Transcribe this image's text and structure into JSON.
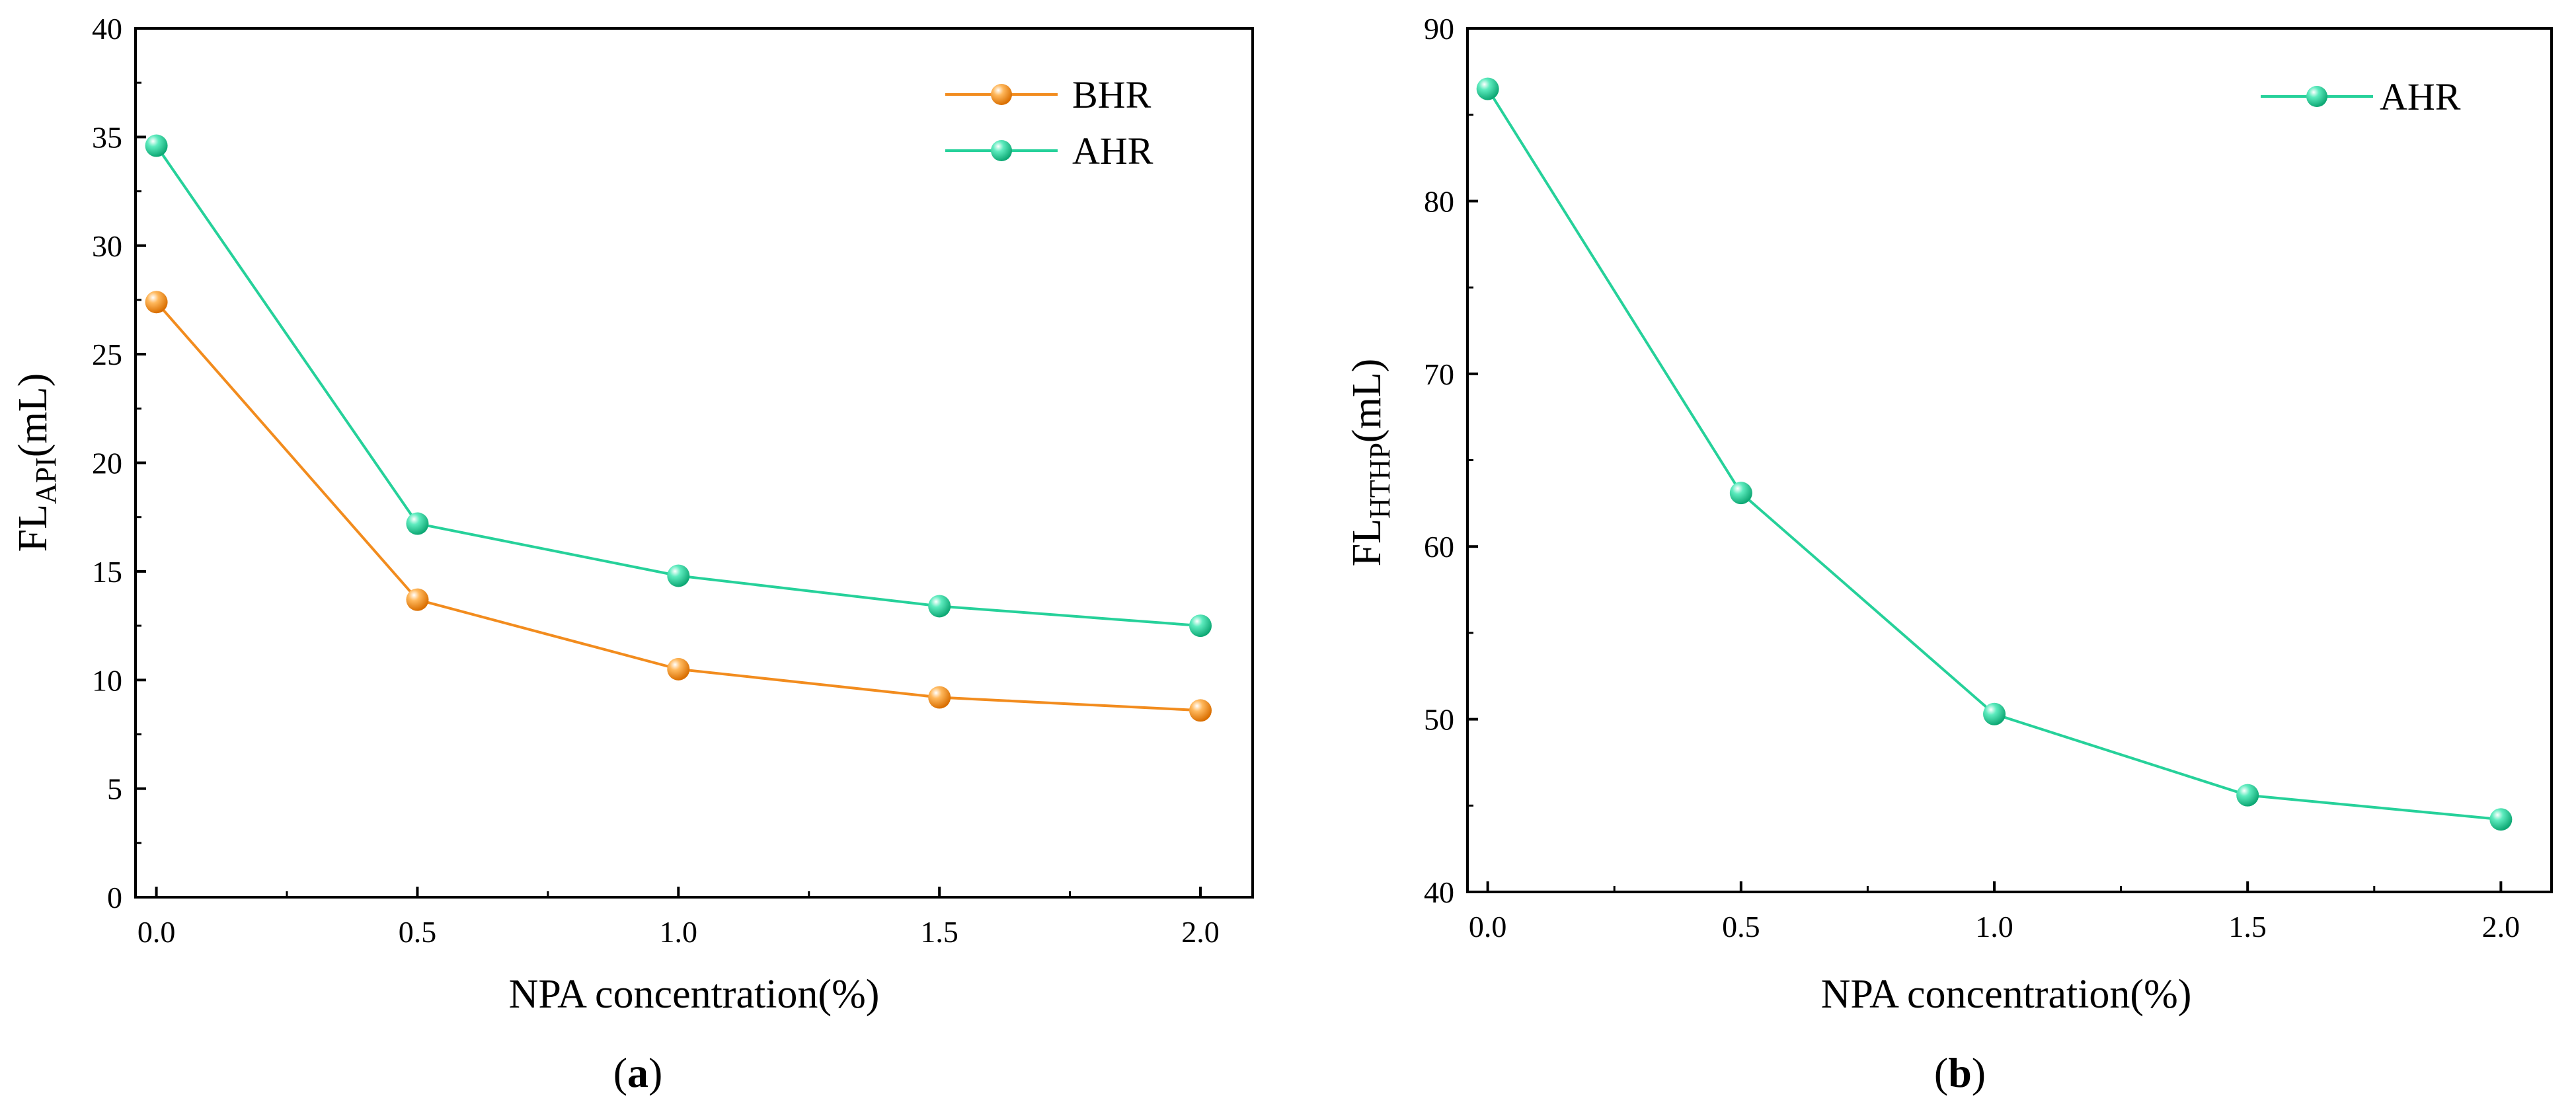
{
  "chart_data": [
    {
      "id": "a",
      "type": "line",
      "panel_label": "a",
      "xlabel": "NPA concentration(%)",
      "ylabel": {
        "base": "FL",
        "subscript": "API",
        "suffix": "(mL)"
      },
      "x": [
        0.0,
        0.5,
        1.0,
        1.5,
        2.0
      ],
      "x_tick_labels": [
        "0.0",
        "0.5",
        "1.0",
        "1.5",
        "2.0"
      ],
      "xlim": [
        -0.04,
        2.1
      ],
      "ylim": [
        0,
        40
      ],
      "y_ticks": [
        0,
        5,
        10,
        15,
        20,
        25,
        30,
        35,
        40
      ],
      "y_tick_labels": [
        "0",
        "5",
        "10",
        "15",
        "20",
        "25",
        "30",
        "35",
        "40"
      ],
      "legend_position": "top-right",
      "series": [
        {
          "name": "BHR",
          "color": "#F28C1E",
          "values": [
            27.4,
            13.7,
            10.5,
            9.2,
            8.6
          ]
        },
        {
          "name": "AHR",
          "color": "#26D19A",
          "values": [
            34.6,
            17.2,
            14.8,
            13.4,
            12.5
          ]
        }
      ]
    },
    {
      "id": "b",
      "type": "line",
      "panel_label": "b",
      "xlabel": "NPA concentration(%)",
      "ylabel": {
        "base": "FL",
        "subscript": "HTHP",
        "suffix": "(mL)"
      },
      "x": [
        0.0,
        0.5,
        1.0,
        1.5,
        2.0
      ],
      "x_tick_labels": [
        "0.0",
        "0.5",
        "1.0",
        "1.5",
        "2.0"
      ],
      "xlim": [
        -0.04,
        2.1
      ],
      "ylim": [
        40,
        90
      ],
      "y_ticks": [
        40,
        50,
        60,
        70,
        80,
        90
      ],
      "y_tick_labels": [
        "40",
        "50",
        "60",
        "70",
        "80",
        "90"
      ],
      "legend_position": "top-right",
      "series": [
        {
          "name": "AHR",
          "color": "#26D19A",
          "values": [
            86.5,
            63.1,
            50.3,
            45.6,
            44.2
          ]
        }
      ]
    }
  ]
}
